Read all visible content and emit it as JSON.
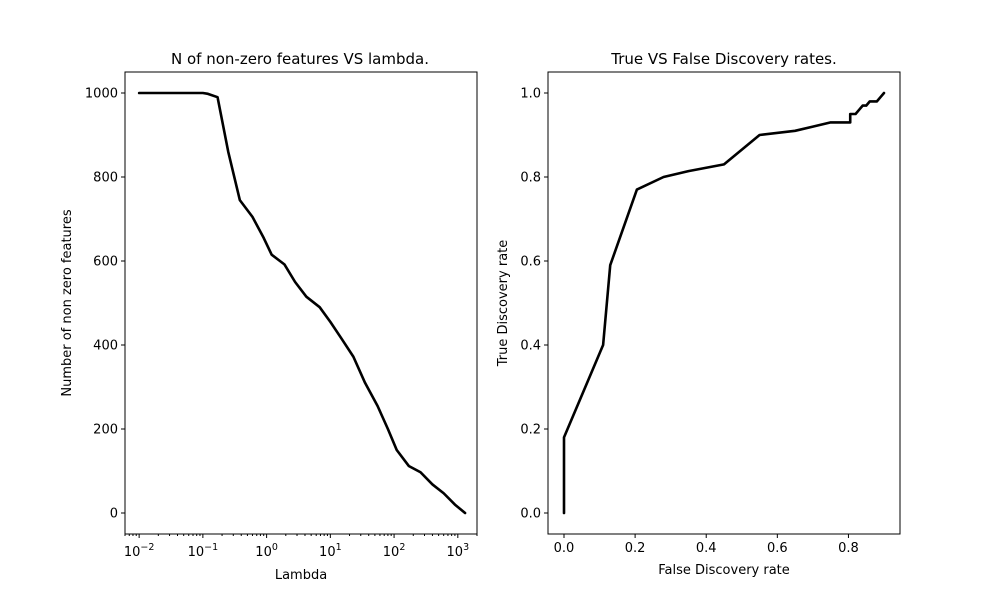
{
  "chart_data": [
    {
      "type": "line",
      "title": "N of non-zero features VS lambda.",
      "xlabel": "Lambda",
      "ylabel": "Number of non zero features",
      "xscale": "log",
      "xlim": [
        0.006,
        2000
      ],
      "ylim": [
        -50,
        1050
      ],
      "x_ticks": [
        {
          "value": 0.01,
          "base": "10",
          "exp": "−2"
        },
        {
          "value": 0.1,
          "base": "10",
          "exp": "−1"
        },
        {
          "value": 1,
          "base": "10",
          "exp": "0"
        },
        {
          "value": 10,
          "base": "10",
          "exp": "1"
        },
        {
          "value": 100,
          "base": "10",
          "exp": "2"
        },
        {
          "value": 1000,
          "base": "10",
          "exp": "3"
        }
      ],
      "y_ticks": [
        "0",
        "200",
        "400",
        "600",
        "800",
        "1000"
      ],
      "grid": false,
      "series": [
        {
          "color": "#000000",
          "x": [
            0.01,
            0.02,
            0.05,
            0.08,
            0.1,
            0.12,
            0.17,
            0.25,
            0.38,
            0.6,
            0.9,
            1.2,
            1.9,
            2.8,
            4.2,
            6.8,
            10,
            15,
            23,
            35,
            55,
            80,
            110,
            170,
            260,
            400,
            600,
            900,
            1300
          ],
          "y": [
            1000,
            1000,
            1000,
            1000,
            1000,
            998,
            990,
            860,
            745,
            705,
            655,
            615,
            592,
            550,
            515,
            490,
            455,
            415,
            372,
            310,
            255,
            200,
            150,
            112,
            97,
            68,
            47,
            20,
            0
          ]
        }
      ]
    },
    {
      "type": "line",
      "title": "True VS False Discovery rates.",
      "xlabel": "False Discovery rate",
      "ylabel": "True Discovery rate",
      "xlim": [
        -0.045,
        0.945
      ],
      "ylim": [
        -0.05,
        1.05
      ],
      "x_ticks": [
        "0.0",
        "0.2",
        "0.4",
        "0.6",
        "0.8"
      ],
      "y_ticks": [
        "0.0",
        "0.2",
        "0.4",
        "0.6",
        "0.8",
        "1.0"
      ],
      "grid": false,
      "series": [
        {
          "color": "#000000",
          "x": [
            0.0,
            0.0,
            0.11,
            0.13,
            0.205,
            0.28,
            0.35,
            0.45,
            0.55,
            0.65,
            0.7,
            0.75,
            0.805,
            0.805,
            0.82,
            0.83,
            0.84,
            0.85,
            0.86,
            0.87,
            0.88,
            0.89,
            0.9
          ],
          "y": [
            0.0,
            0.18,
            0.4,
            0.59,
            0.77,
            0.8,
            0.814,
            0.83,
            0.9,
            0.91,
            0.92,
            0.93,
            0.93,
            0.95,
            0.95,
            0.96,
            0.97,
            0.97,
            0.98,
            0.98,
            0.98,
            0.99,
            1.0
          ]
        }
      ]
    }
  ]
}
